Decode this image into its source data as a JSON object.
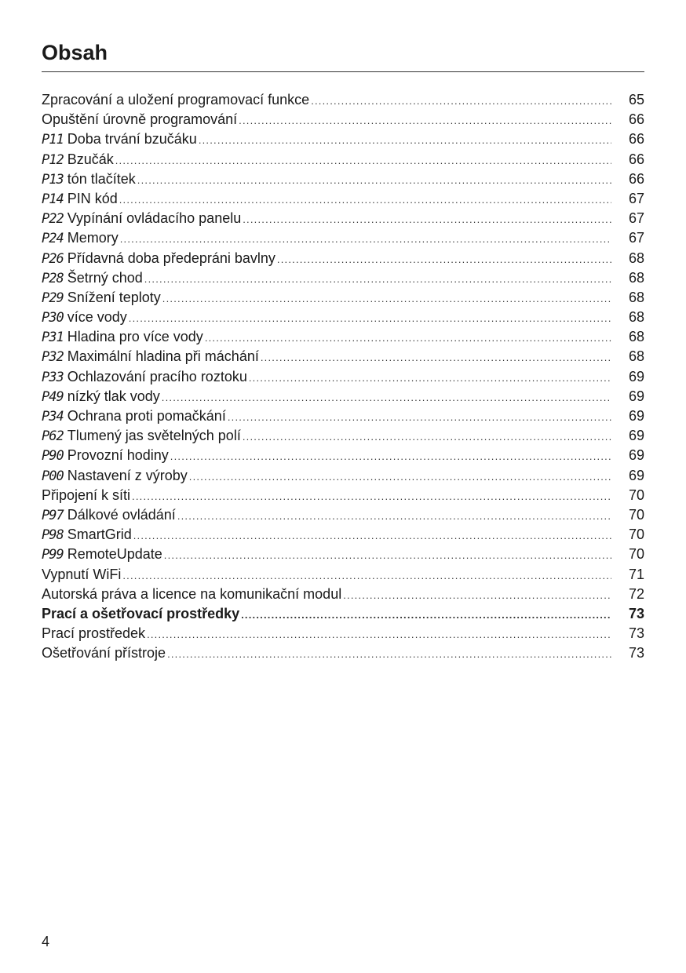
{
  "title": "Obsah",
  "entries": [
    {
      "code": "",
      "text": "Zpracování a uložení programovací funkce",
      "page": "65"
    },
    {
      "code": "",
      "text": "Opuštění úrovně programování",
      "page": "66"
    },
    {
      "code": "P11",
      "text": "Doba trvání bzučáku",
      "page": "66"
    },
    {
      "code": "P12",
      "text": "Bzučák",
      "page": "66"
    },
    {
      "code": "P13",
      "text": "tón tlačítek",
      "page": "66"
    },
    {
      "code": "P14",
      "text": "PIN kód",
      "page": "67"
    },
    {
      "code": "P22",
      "text": "Vypínání ovládacího panelu",
      "page": "67"
    },
    {
      "code": "P24",
      "text": "Memory",
      "page": "67"
    },
    {
      "code": "P26",
      "text": "Přídavná doba předepráni bavlny",
      "page": "68"
    },
    {
      "code": "P28",
      "text": "Šetrný chod",
      "page": "68"
    },
    {
      "code": "P29",
      "text": "Snížení teploty",
      "page": "68"
    },
    {
      "code": "P30",
      "text": "více vody",
      "page": "68"
    },
    {
      "code": "P31",
      "text": "Hladina pro více vody",
      "page": "68"
    },
    {
      "code": "P32",
      "text": "Maximální hladina při máchání",
      "page": "68"
    },
    {
      "code": "P33",
      "text": "Ochlazování pracího roztoku",
      "page": "69"
    },
    {
      "code": "P49",
      "text": "nízký tlak vody",
      "page": "69"
    },
    {
      "code": "P34",
      "text": "Ochrana proti pomačkání",
      "page": "69"
    },
    {
      "code": "P62",
      "text": "Tlumený jas světelných polí",
      "page": "69"
    },
    {
      "code": "P90",
      "text": "Provozní hodiny",
      "page": "69"
    },
    {
      "code": "P00",
      "text": "Nastavení z výroby",
      "page": "69"
    },
    {
      "code": "",
      "text": "Připojení k síti",
      "page": "70"
    },
    {
      "code": "P97",
      "text": "Dálkové ovládání",
      "page": "70"
    },
    {
      "code": "P98",
      "text": "SmartGrid",
      "page": "70"
    },
    {
      "code": "P99",
      "text": "RemoteUpdate",
      "page": "70"
    },
    {
      "code": "",
      "text": "Vypnutí WiFi",
      "page": "71"
    },
    {
      "code": "",
      "text": "Autorská práva a licence na komunikační modul",
      "page": "72"
    },
    {
      "code": "",
      "text": "Prací a ošetřovací prostředky",
      "page": "73",
      "bold": true
    },
    {
      "code": "",
      "text": "Prací prostředek",
      "page": "73"
    },
    {
      "code": "",
      "text": "Ošetřování přístroje",
      "page": "73"
    }
  ],
  "page_number": "4"
}
